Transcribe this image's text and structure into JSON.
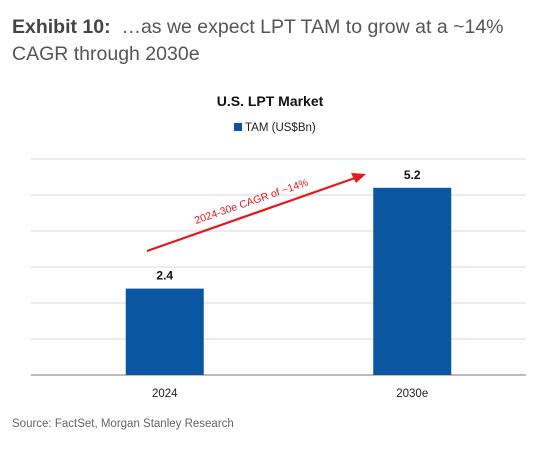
{
  "exhibit": {
    "label": "Exhibit 10:",
    "title": "…as we expect LPT TAM to grow at a ~14% CAGR through 2030e"
  },
  "chart_data": {
    "type": "bar",
    "title": "U.S. LPT Market",
    "categories": [
      "2024",
      "2030e"
    ],
    "series": [
      {
        "name": "TAM (US$Bn)",
        "values": [
          2.4,
          5.2
        ],
        "color": "#0a56a3"
      }
    ],
    "data_labels": [
      "2.4",
      "5.2"
    ],
    "ylim": [
      0,
      6
    ],
    "y_gridlines": [
      1,
      2,
      3,
      4,
      5,
      6
    ],
    "y_tick_labels_shown": false,
    "legend_position": "top-center",
    "grid": true,
    "annotation": {
      "text": "2024-30e CAGR of ~14%",
      "color": "#e8171c",
      "style": "arrow from 2024 bar to 2030e bar"
    }
  },
  "source": "Source: FactSet, Morgan Stanley Research"
}
